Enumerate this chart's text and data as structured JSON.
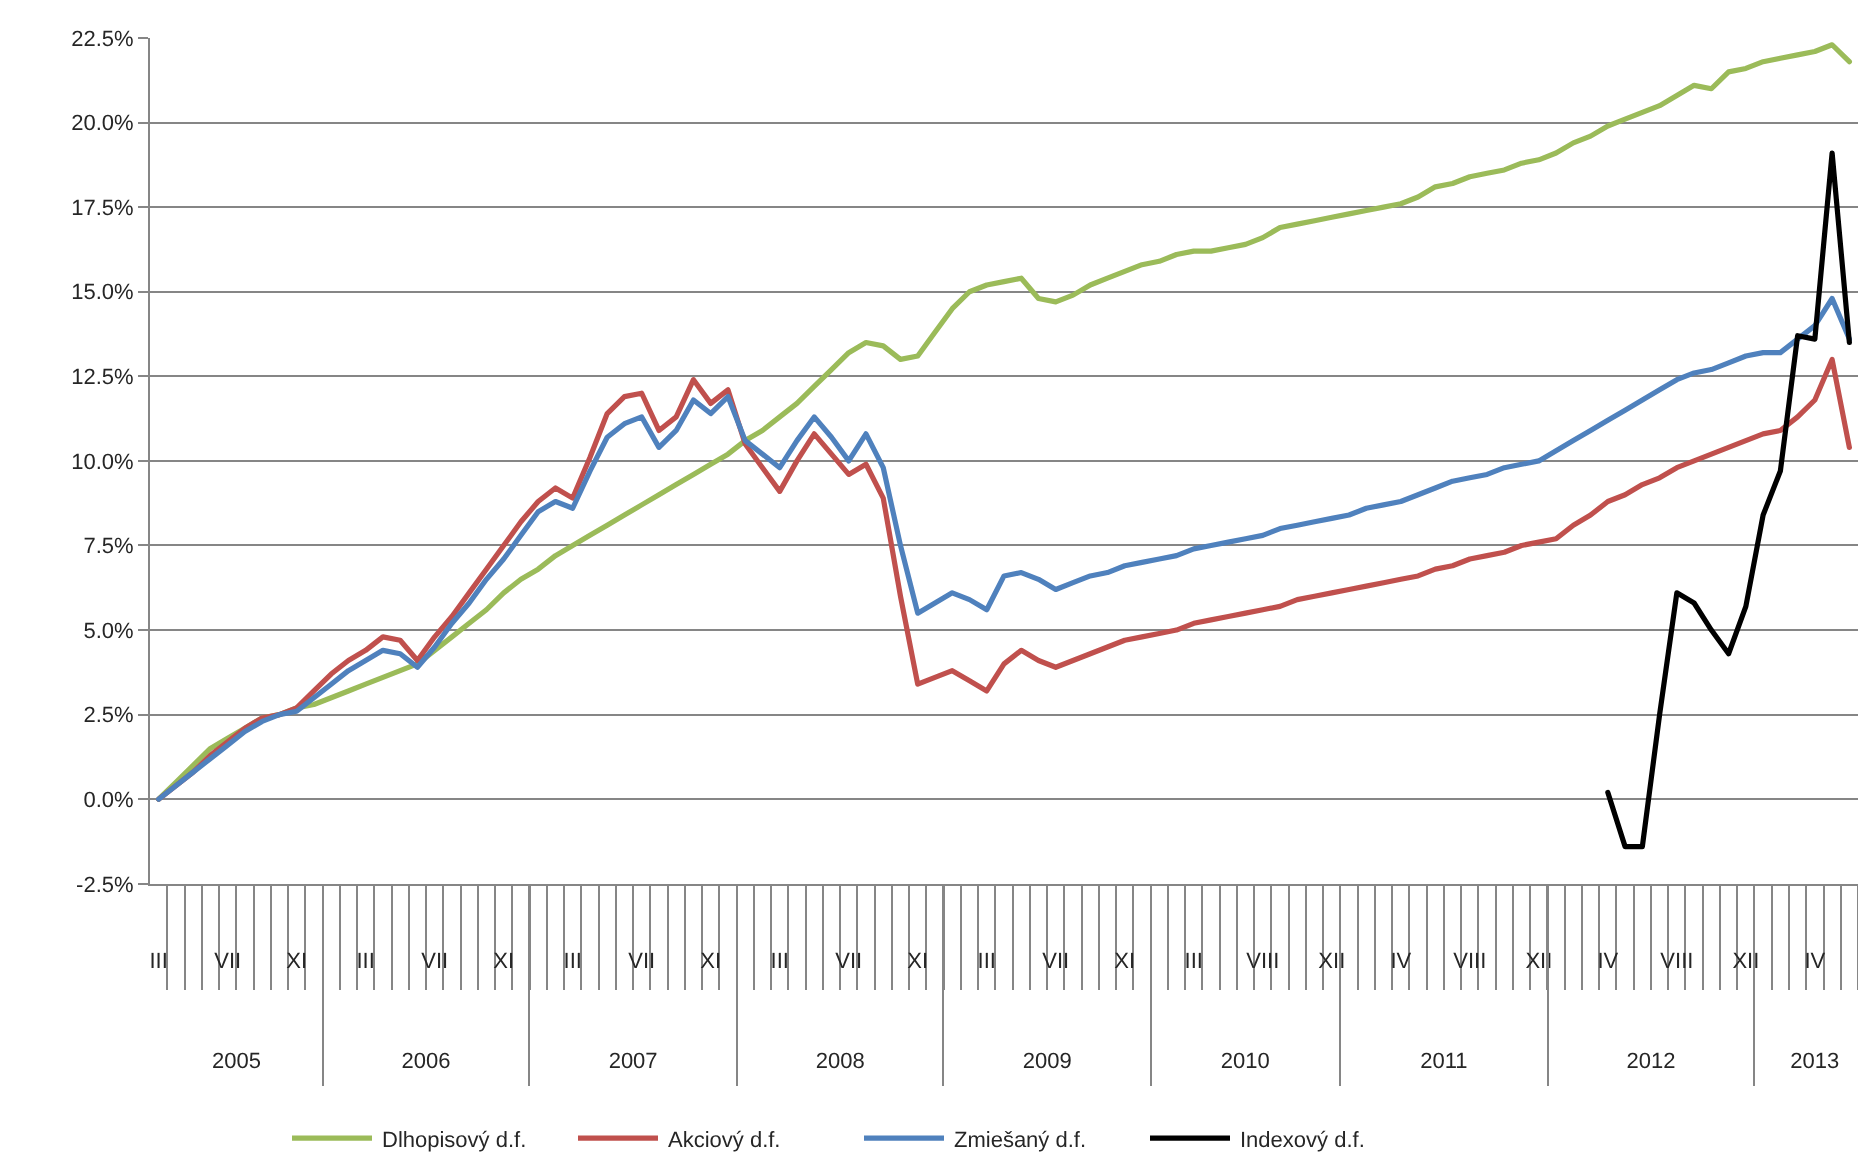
{
  "chart_data": {
    "type": "line",
    "categories": [
      "III",
      null,
      null,
      null,
      "VII",
      null,
      null,
      null,
      "XI",
      null,
      null,
      null,
      "III",
      null,
      null,
      null,
      "VII",
      null,
      null,
      null,
      "XI",
      null,
      null,
      null,
      "III",
      null,
      null,
      null,
      "VII",
      null,
      null,
      null,
      "XI",
      null,
      null,
      null,
      "III",
      null,
      null,
      null,
      "VII",
      null,
      null,
      null,
      "XI",
      null,
      null,
      null,
      "III",
      null,
      null,
      null,
      "VII",
      null,
      null,
      null,
      "XI",
      null,
      null,
      null,
      "III",
      null,
      null,
      null,
      "VIII",
      null,
      null,
      null,
      "XII",
      null,
      null,
      null,
      "IV",
      null,
      null,
      null,
      "VIII",
      null,
      null,
      null,
      "XII",
      null,
      null,
      null,
      "IV",
      null,
      null,
      null,
      "VIII",
      null,
      null,
      null,
      "XII",
      null,
      null,
      null,
      "IV",
      null,
      null
    ],
    "series": [
      {
        "name": "Dlhopisový d.f.",
        "color": "#9bbb59",
        "values": [
          0.0,
          0.5,
          1.0,
          1.5,
          1.8,
          2.1,
          2.4,
          2.5,
          2.7,
          2.8,
          3.0,
          3.2,
          3.4,
          3.6,
          3.8,
          4.0,
          4.4,
          4.8,
          5.2,
          5.6,
          6.1,
          6.5,
          6.8,
          7.2,
          7.5,
          7.8,
          8.1,
          8.4,
          8.7,
          9.0,
          9.3,
          9.6,
          9.9,
          10.2,
          10.6,
          10.9,
          11.3,
          11.7,
          12.2,
          12.7,
          13.2,
          13.5,
          13.4,
          13.0,
          13.1,
          13.8,
          14.5,
          15.0,
          15.2,
          15.3,
          15.4,
          14.8,
          14.7,
          14.9,
          15.2,
          15.4,
          15.6,
          15.8,
          15.9,
          16.1,
          16.2,
          16.2,
          16.3,
          16.4,
          16.6,
          16.9,
          17.0,
          17.1,
          17.2,
          17.3,
          17.4,
          17.5,
          17.6,
          17.8,
          18.1,
          18.2,
          18.4,
          18.5,
          18.6,
          18.8,
          18.9,
          19.1,
          19.4,
          19.6,
          19.9,
          20.1,
          20.3,
          20.5,
          20.8,
          21.1,
          21.0,
          21.5,
          21.6,
          21.8,
          21.9,
          22.0,
          22.1,
          22.3,
          21.8
        ]
      },
      {
        "name": "Akciový d.f.",
        "color": "#c0504d",
        "values": [
          0.0,
          0.4,
          0.8,
          1.3,
          1.7,
          2.1,
          2.4,
          2.5,
          2.7,
          3.2,
          3.7,
          4.1,
          4.4,
          4.8,
          4.7,
          4.1,
          4.8,
          5.4,
          6.1,
          6.8,
          7.5,
          8.2,
          8.8,
          9.2,
          8.9,
          10.1,
          11.4,
          11.9,
          12.0,
          10.9,
          11.3,
          12.4,
          11.7,
          12.1,
          10.5,
          9.8,
          9.1,
          10.0,
          10.8,
          10.2,
          9.6,
          9.9,
          8.9,
          6.0,
          3.4,
          3.6,
          3.8,
          3.5,
          3.2,
          4.0,
          4.4,
          4.1,
          3.9,
          4.1,
          4.3,
          4.5,
          4.7,
          4.8,
          4.9,
          5.0,
          5.2,
          5.3,
          5.4,
          5.5,
          5.6,
          5.7,
          5.9,
          6.0,
          6.1,
          6.2,
          6.3,
          6.4,
          6.5,
          6.6,
          6.8,
          6.9,
          7.1,
          7.2,
          7.3,
          7.5,
          7.6,
          7.7,
          8.1,
          8.4,
          8.8,
          9.0,
          9.3,
          9.5,
          9.8,
          10.0,
          10.2,
          10.4,
          10.6,
          10.8,
          10.9,
          11.3,
          11.8,
          13.0,
          10.4
        ]
      },
      {
        "name": "Zmiešaný d.f.",
        "color": "#4f81bd",
        "values": [
          0.0,
          0.4,
          0.8,
          1.2,
          1.6,
          2.0,
          2.3,
          2.5,
          2.6,
          3.0,
          3.4,
          3.8,
          4.1,
          4.4,
          4.3,
          3.9,
          4.5,
          5.2,
          5.8,
          6.5,
          7.1,
          7.8,
          8.5,
          8.8,
          8.6,
          9.7,
          10.7,
          11.1,
          11.3,
          10.4,
          10.9,
          11.8,
          11.4,
          11.9,
          10.6,
          10.2,
          9.8,
          10.6,
          11.3,
          10.7,
          10.0,
          10.8,
          9.8,
          7.5,
          5.5,
          5.8,
          6.1,
          5.9,
          5.6,
          6.6,
          6.7,
          6.5,
          6.2,
          6.4,
          6.6,
          6.7,
          6.9,
          7.0,
          7.1,
          7.2,
          7.4,
          7.5,
          7.6,
          7.7,
          7.8,
          8.0,
          8.1,
          8.2,
          8.3,
          8.4,
          8.6,
          8.7,
          8.8,
          9.0,
          9.2,
          9.4,
          9.5,
          9.6,
          9.8,
          9.9,
          10.0,
          10.3,
          10.6,
          10.9,
          11.2,
          11.5,
          11.8,
          12.1,
          12.4,
          12.6,
          12.7,
          12.9,
          13.1,
          13.2,
          13.2,
          13.6,
          14.0,
          14.8,
          13.6
        ]
      },
      {
        "name": "Indexový d.f.",
        "color": "#000000",
        "values": [
          null,
          null,
          null,
          null,
          null,
          null,
          null,
          null,
          null,
          null,
          null,
          null,
          null,
          null,
          null,
          null,
          null,
          null,
          null,
          null,
          null,
          null,
          null,
          null,
          null,
          null,
          null,
          null,
          null,
          null,
          null,
          null,
          null,
          null,
          null,
          null,
          null,
          null,
          null,
          null,
          null,
          null,
          null,
          null,
          null,
          null,
          null,
          null,
          null,
          null,
          null,
          null,
          null,
          null,
          null,
          null,
          null,
          null,
          null,
          null,
          null,
          null,
          null,
          null,
          null,
          null,
          null,
          null,
          null,
          null,
          null,
          null,
          null,
          null,
          null,
          null,
          null,
          null,
          null,
          null,
          null,
          null,
          null,
          null,
          0.2,
          -1.4,
          -1.4,
          2.5,
          6.1,
          5.8,
          5.0,
          4.3,
          5.7,
          8.4,
          9.7,
          13.7,
          13.6,
          19.1,
          13.5
        ]
      }
    ],
    "x2lim": [
      "2005-02-14",
      "2013-06-16"
    ],
    "x2ticks": [
      {
        "value": "2005-07-18",
        "label": "2005"
      },
      {
        "value": "2006-06-21",
        "label": "2006"
      },
      {
        "value": "2007-06-25",
        "label": "2007"
      },
      {
        "value": "2008-06-28",
        "label": "2008"
      },
      {
        "value": "2009-07-02",
        "label": "2009"
      },
      {
        "value": "2010-06-20",
        "label": "2010"
      },
      {
        "value": "2011-06-09",
        "label": "2011"
      },
      {
        "value": "2012-06-12",
        "label": "2012"
      },
      {
        "value": "2013-03-31",
        "label": "2013"
      }
    ],
    "ylim": [
      -2.5,
      22.5
    ],
    "yticks": [
      {
        "value": -2.5,
        "label": "-2.5%"
      },
      {
        "value": 0,
        "label": "0.0%"
      },
      {
        "value": 2.5,
        "label": "2.5%"
      },
      {
        "value": 5,
        "label": "5.0%"
      },
      {
        "value": 7.5,
        "label": "7.5%"
      },
      {
        "value": 10,
        "label": "10.0%"
      },
      {
        "value": 12.5,
        "label": "12.5%"
      },
      {
        "value": 15,
        "label": "15.0%"
      },
      {
        "value": 17.5,
        "label": "17.5%"
      },
      {
        "value": 20,
        "label": "20.0%"
      },
      {
        "value": 22.5,
        "label": "22.5%"
      }
    ],
    "grid": "y",
    "legend": "bottom",
    "marker": "none",
    "line_style": "solid"
  }
}
